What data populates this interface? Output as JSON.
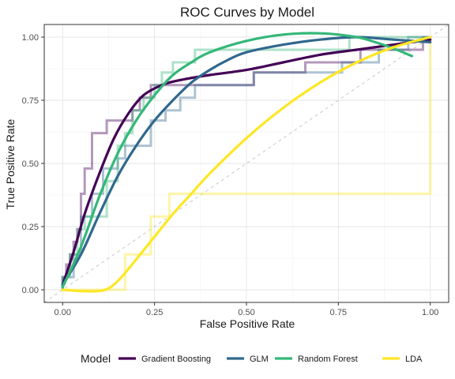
{
  "chart_data": {
    "type": "line",
    "title": "ROC Curves by Model",
    "xlabel": "False Positive Rate",
    "ylabel": "True Positive Rate",
    "xlim": [
      -0.05,
      1.05
    ],
    "ylim": [
      -0.05,
      1.05
    ],
    "xticks": [
      0,
      0.25,
      0.5,
      0.75,
      1
    ],
    "yticks": [
      0,
      0.25,
      0.5,
      0.75,
      1
    ],
    "xtick_labels": [
      "0.00",
      "0.25",
      "0.50",
      "0.75",
      "1.00"
    ],
    "ytick_labels": [
      "0.00",
      "0.25",
      "0.50",
      "0.75",
      "1.00"
    ],
    "grid": true,
    "reference_line": "diagonal",
    "legend": {
      "title": "Model",
      "position": "bottom"
    },
    "series": [
      {
        "name": "Gradient Boosting",
        "color": "#440154",
        "roc": [
          [
            0,
            0
          ],
          [
            0,
            0.05
          ],
          [
            0.01,
            0.05
          ],
          [
            0.01,
            0.1
          ],
          [
            0.02,
            0.1
          ],
          [
            0.02,
            0.14
          ],
          [
            0.03,
            0.14
          ],
          [
            0.03,
            0.19
          ],
          [
            0.04,
            0.19
          ],
          [
            0.04,
            0.24
          ],
          [
            0.05,
            0.24
          ],
          [
            0.05,
            0.38
          ],
          [
            0.06,
            0.38
          ],
          [
            0.06,
            0.48
          ],
          [
            0.08,
            0.48
          ],
          [
            0.08,
            0.62
          ],
          [
            0.12,
            0.62
          ],
          [
            0.12,
            0.67
          ],
          [
            0.19,
            0.67
          ],
          [
            0.19,
            0.71
          ],
          [
            0.21,
            0.71
          ],
          [
            0.21,
            0.76
          ],
          [
            0.24,
            0.76
          ],
          [
            0.24,
            0.81
          ],
          [
            0.52,
            0.81
          ],
          [
            0.52,
            0.86
          ],
          [
            0.66,
            0.86
          ],
          [
            0.66,
            0.9
          ],
          [
            0.81,
            0.9
          ],
          [
            0.81,
            0.95
          ],
          [
            0.98,
            0.95
          ],
          [
            0.98,
            1
          ],
          [
            1,
            1
          ]
        ],
        "smooth": [
          [
            0,
            0.02
          ],
          [
            0.03,
            0.15
          ],
          [
            0.06,
            0.3
          ],
          [
            0.1,
            0.46
          ],
          [
            0.14,
            0.6
          ],
          [
            0.18,
            0.7
          ],
          [
            0.22,
            0.77
          ],
          [
            0.27,
            0.81
          ],
          [
            0.32,
            0.83
          ],
          [
            0.4,
            0.85
          ],
          [
            0.5,
            0.87
          ],
          [
            0.6,
            0.9
          ],
          [
            0.7,
            0.93
          ],
          [
            0.8,
            0.95
          ],
          [
            0.9,
            0.97
          ],
          [
            1,
            0.99
          ]
        ]
      },
      {
        "name": "GLM",
        "color": "#31688e",
        "roc": [
          [
            0,
            0
          ],
          [
            0,
            0.05
          ],
          [
            0.03,
            0.05
          ],
          [
            0.03,
            0.14
          ],
          [
            0.05,
            0.14
          ],
          [
            0.05,
            0.29
          ],
          [
            0.08,
            0.29
          ],
          [
            0.08,
            0.38
          ],
          [
            0.11,
            0.38
          ],
          [
            0.11,
            0.48
          ],
          [
            0.15,
            0.48
          ],
          [
            0.15,
            0.52
          ],
          [
            0.17,
            0.52
          ],
          [
            0.17,
            0.57
          ],
          [
            0.24,
            0.57
          ],
          [
            0.24,
            0.67
          ],
          [
            0.28,
            0.67
          ],
          [
            0.28,
            0.71
          ],
          [
            0.32,
            0.71
          ],
          [
            0.32,
            0.76
          ],
          [
            0.36,
            0.76
          ],
          [
            0.36,
            0.81
          ],
          [
            0.52,
            0.81
          ],
          [
            0.52,
            0.86
          ],
          [
            0.76,
            0.86
          ],
          [
            0.76,
            0.9
          ],
          [
            0.86,
            0.9
          ],
          [
            0.86,
            0.95
          ],
          [
            0.94,
            0.95
          ],
          [
            0.94,
            1
          ],
          [
            1,
            1
          ]
        ],
        "smooth": [
          [
            0,
            0.02
          ],
          [
            0.05,
            0.14
          ],
          [
            0.1,
            0.3
          ],
          [
            0.15,
            0.45
          ],
          [
            0.2,
            0.57
          ],
          [
            0.25,
            0.67
          ],
          [
            0.3,
            0.75
          ],
          [
            0.35,
            0.82
          ],
          [
            0.4,
            0.87
          ],
          [
            0.45,
            0.91
          ],
          [
            0.5,
            0.94
          ],
          [
            0.6,
            0.97
          ],
          [
            0.7,
            0.99
          ],
          [
            0.8,
            1
          ],
          [
            0.9,
            0.99
          ],
          [
            1,
            0.98
          ]
        ]
      },
      {
        "name": "Random Forest",
        "color": "#35b779",
        "roc": [
          [
            0,
            0
          ],
          [
            0,
            0.05
          ],
          [
            0.02,
            0.05
          ],
          [
            0.02,
            0.14
          ],
          [
            0.04,
            0.14
          ],
          [
            0.04,
            0.24
          ],
          [
            0.06,
            0.24
          ],
          [
            0.06,
            0.29
          ],
          [
            0.12,
            0.29
          ],
          [
            0.12,
            0.43
          ],
          [
            0.15,
            0.43
          ],
          [
            0.15,
            0.57
          ],
          [
            0.17,
            0.57
          ],
          [
            0.17,
            0.62
          ],
          [
            0.19,
            0.62
          ],
          [
            0.19,
            0.71
          ],
          [
            0.22,
            0.71
          ],
          [
            0.22,
            0.76
          ],
          [
            0.25,
            0.76
          ],
          [
            0.25,
            0.81
          ],
          [
            0.27,
            0.81
          ],
          [
            0.27,
            0.86
          ],
          [
            0.3,
            0.86
          ],
          [
            0.3,
            0.9
          ],
          [
            0.36,
            0.9
          ],
          [
            0.36,
            0.95
          ],
          [
            0.78,
            0.95
          ],
          [
            0.78,
            1
          ],
          [
            1,
            1
          ]
        ],
        "smooth": [
          [
            0,
            0.01
          ],
          [
            0.05,
            0.17
          ],
          [
            0.1,
            0.37
          ],
          [
            0.15,
            0.54
          ],
          [
            0.2,
            0.67
          ],
          [
            0.25,
            0.77
          ],
          [
            0.3,
            0.85
          ],
          [
            0.35,
            0.9
          ],
          [
            0.4,
            0.94
          ],
          [
            0.5,
            0.985
          ],
          [
            0.6,
            1.01
          ],
          [
            0.7,
            1.015
          ],
          [
            0.8,
            1
          ],
          [
            0.85,
            0.98
          ],
          [
            0.9,
            0.955
          ],
          [
            0.95,
            0.925
          ]
        ]
      },
      {
        "name": "LDA",
        "color": "#fde725",
        "roc": [
          [
            0,
            0
          ],
          [
            0.17,
            0
          ],
          [
            0.17,
            0.14
          ],
          [
            0.24,
            0.14
          ],
          [
            0.24,
            0.29
          ],
          [
            0.29,
            0.29
          ],
          [
            0.29,
            0.38
          ],
          [
            1,
            0.38
          ],
          [
            1,
            1
          ]
        ],
        "smooth": [
          [
            0,
            0
          ],
          [
            0.05,
            -0.005
          ],
          [
            0.1,
            -0.005
          ],
          [
            0.13,
            0.01
          ],
          [
            0.16,
            0.05
          ],
          [
            0.2,
            0.12
          ],
          [
            0.25,
            0.21
          ],
          [
            0.3,
            0.3
          ],
          [
            0.35,
            0.38
          ],
          [
            0.4,
            0.46
          ],
          [
            0.5,
            0.6
          ],
          [
            0.6,
            0.72
          ],
          [
            0.7,
            0.82
          ],
          [
            0.8,
            0.9
          ],
          [
            0.9,
            0.96
          ],
          [
            1,
            1
          ]
        ]
      }
    ]
  }
}
